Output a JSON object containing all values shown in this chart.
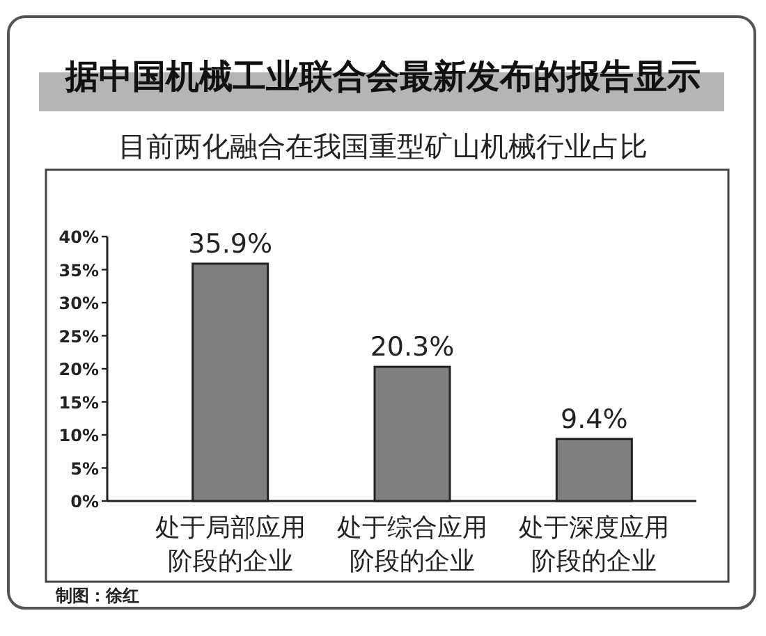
{
  "chart_data": {
    "type": "bar",
    "title": "据中国机械工业联合会最新发布的报告显示",
    "subtitle": "目前两化融合在我国重型矿山机械行业占比",
    "categories": [
      "处于局部应用阶段的企业",
      "处于综合应用阶段的企业",
      "处于深度应用阶段的企业"
    ],
    "values": [
      35.9,
      20.3,
      9.4
    ],
    "color": "#7f7f7f",
    "value_labels": [
      "35.9%",
      "20.3%",
      "9.4%"
    ],
    "ylim": [
      0,
      40
    ],
    "yticks": [
      {
        "value": 0,
        "label": "0%"
      },
      {
        "value": 5,
        "label": "5%"
      },
      {
        "value": 10,
        "label": "10%"
      },
      {
        "value": 15,
        "label": "15%"
      },
      {
        "value": 20,
        "label": "20%"
      },
      {
        "value": 25,
        "label": "25%"
      },
      {
        "value": 30,
        "label": "30%"
      },
      {
        "value": 35,
        "label": "35%"
      },
      {
        "value": 40,
        "label": "40%"
      }
    ],
    "annotations": [
      "制图：徐红"
    ]
  }
}
